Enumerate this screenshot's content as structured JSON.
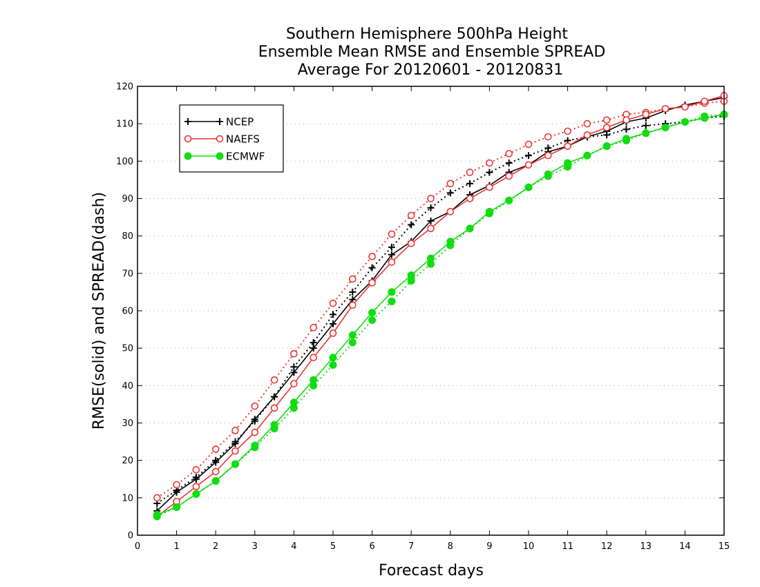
{
  "chart_data": {
    "type": "line",
    "title": [
      "Southern Hemisphere 500hPa Height",
      "Ensemble Mean RMSE and Ensemble SPREAD",
      "Average For 20120601 - 20120831"
    ],
    "xlabel": "Forecast days",
    "ylabel": "RMSE(solid) and SPREAD(dash)",
    "xlim": [
      0,
      15
    ],
    "ylim": [
      0,
      120
    ],
    "xticks": [
      0,
      1,
      2,
      3,
      4,
      5,
      6,
      7,
      8,
      9,
      10,
      11,
      12,
      13,
      14,
      15
    ],
    "yticks": [
      0,
      10,
      20,
      30,
      40,
      50,
      60,
      70,
      80,
      90,
      100,
      110,
      120
    ],
    "grid": true,
    "legend_position": "top-left",
    "x": [
      0.5,
      1,
      1.5,
      2,
      2.5,
      3,
      3.5,
      4,
      4.5,
      5,
      5.5,
      6,
      6.5,
      7,
      7.5,
      8,
      8.5,
      9,
      9.5,
      10,
      10.5,
      11,
      11.5,
      12,
      12.5,
      13,
      13.5,
      14,
      14.5,
      15
    ],
    "series": [
      {
        "name": "NCEP",
        "color": "#000000",
        "marker": "plus",
        "rmse": [
          6.5,
          11.5,
          15.0,
          19.5,
          24.5,
          31.0,
          37.0,
          43.5,
          50.0,
          56.5,
          63.0,
          68.0,
          75.0,
          78.5,
          84.0,
          86.5,
          91.0,
          93.5,
          97.0,
          99.0,
          102.5,
          104.0,
          106.5,
          108.0,
          110.5,
          111.5,
          113.5,
          115.0,
          116.0,
          117.0
        ],
        "spread": [
          8.5,
          12.0,
          15.5,
          20.0,
          25.0,
          30.5,
          37.0,
          45.0,
          51.5,
          59.0,
          65.0,
          71.5,
          77.0,
          83.0,
          87.5,
          91.5,
          94.0,
          97.0,
          99.5,
          101.5,
          103.5,
          105.5,
          106.5,
          107.0,
          108.5,
          109.5,
          110.0,
          110.5,
          111.5,
          112.0
        ]
      },
      {
        "name": "NAEFS",
        "color": "#ee3333",
        "marker": "open-circle",
        "rmse": [
          5.0,
          9.0,
          13.0,
          17.0,
          22.5,
          27.5,
          34.0,
          40.5,
          47.5,
          54.0,
          61.5,
          67.5,
          73.0,
          78.0,
          82.0,
          86.5,
          90.0,
          93.0,
          96.0,
          99.0,
          101.5,
          104.0,
          107.0,
          109.0,
          111.0,
          112.5,
          114.0,
          114.5,
          116.0,
          117.5
        ],
        "spread": [
          10.0,
          13.5,
          17.5,
          23.0,
          28.0,
          34.5,
          41.5,
          48.5,
          55.5,
          62.0,
          68.5,
          74.5,
          80.5,
          85.5,
          90.0,
          94.0,
          97.0,
          99.5,
          102.0,
          104.5,
          106.5,
          108.0,
          110.0,
          111.0,
          112.5,
          113.0,
          114.0,
          114.5,
          115.5,
          116.0
        ]
      },
      {
        "name": "ECMWF",
        "color": "#11dd11",
        "marker": "filled-circle",
        "rmse": [
          5.5,
          7.5,
          11.0,
          14.5,
          19.0,
          24.0,
          29.5,
          35.5,
          41.5,
          47.5,
          53.5,
          59.5,
          65.0,
          69.5,
          74.0,
          78.5,
          82.0,
          86.5,
          89.5,
          93.0,
          96.5,
          99.5,
          101.5,
          104.0,
          106.0,
          107.5,
          109.0,
          110.5,
          111.5,
          112.5
        ],
        "spread": [
          5.0,
          7.5,
          11.0,
          14.5,
          19.0,
          23.5,
          28.5,
          34.0,
          40.0,
          45.5,
          51.5,
          57.5,
          62.5,
          68.0,
          72.5,
          77.5,
          82.0,
          86.0,
          89.5,
          93.0,
          96.0,
          98.5,
          101.5,
          104.0,
          105.5,
          107.5,
          109.0,
          110.5,
          112.0,
          112.5
        ]
      }
    ]
  }
}
